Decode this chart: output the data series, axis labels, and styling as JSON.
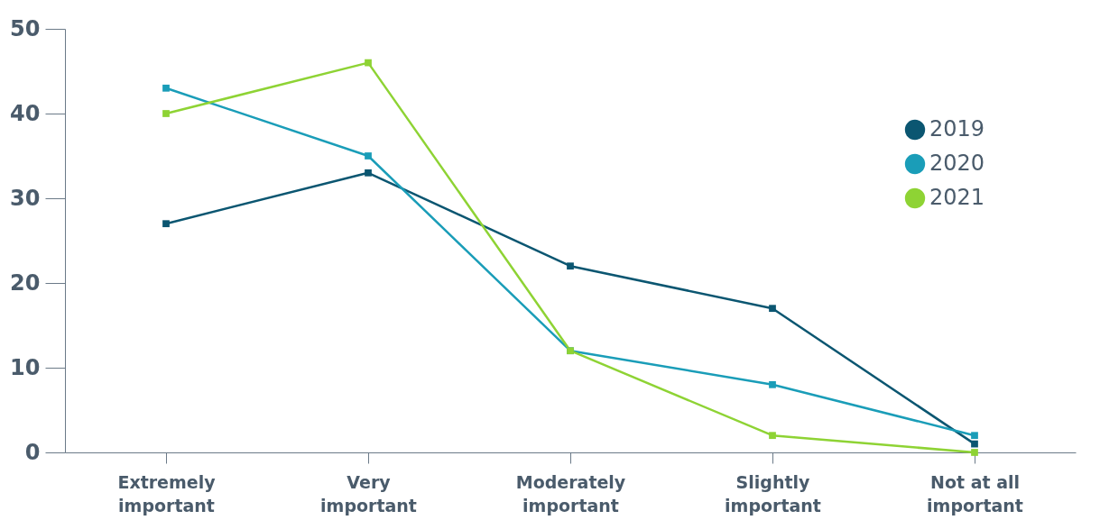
{
  "chart_data": {
    "type": "line",
    "categories": [
      "Extremely important",
      "Very important",
      "Moderately important",
      "Slightly important",
      "Not at all important"
    ],
    "series": [
      {
        "name": "2019",
        "color": "#0b5671",
        "values": [
          27,
          33,
          22,
          17,
          1
        ]
      },
      {
        "name": "2020",
        "color": "#1a9db8",
        "values": [
          43,
          35,
          12,
          8,
          2
        ]
      },
      {
        "name": "2021",
        "color": "#8ed334",
        "values": [
          40,
          46,
          12,
          2,
          0
        ]
      }
    ],
    "ylim": [
      0,
      50
    ],
    "yticks": [
      0,
      10,
      20,
      30,
      40,
      50
    ],
    "grid": false,
    "legend": "top right",
    "marker": "square",
    "line_style": "solid"
  }
}
